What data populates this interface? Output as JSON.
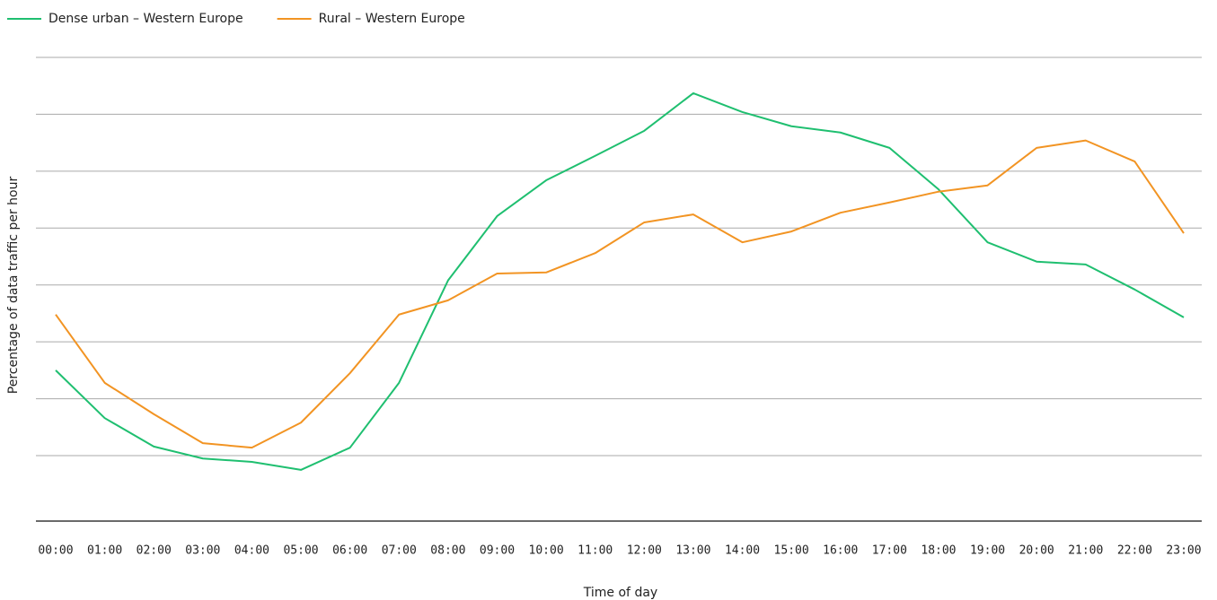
{
  "chart_data": {
    "type": "line",
    "x_label": "Time of day",
    "y_label": "Percentage of data traffic per hour",
    "categories": [
      "00:00",
      "01:00",
      "02:00",
      "03:00",
      "04:00",
      "05:00",
      "06:00",
      "07:00",
      "08:00",
      "09:00",
      "10:00",
      "11:00",
      "12:00",
      "13:00",
      "14:00",
      "15:00",
      "16:00",
      "17:00",
      "18:00",
      "19:00",
      "20:00",
      "21:00",
      "22:00",
      "23:00"
    ],
    "series": [
      {
        "name": "Dense urban – Western Europe",
        "color": "#1fbf70",
        "values": [
          2.5,
          1.66,
          1.16,
          0.95,
          0.89,
          0.75,
          1.14,
          2.28,
          4.08,
          5.21,
          5.84,
          6.27,
          6.71,
          7.37,
          7.04,
          6.79,
          6.68,
          6.41,
          5.68,
          4.75,
          4.41,
          4.36,
          3.92,
          3.43
        ]
      },
      {
        "name": "Rural – Western Europe",
        "color": "#f29423",
        "values": [
          3.48,
          2.28,
          1.73,
          1.22,
          1.14,
          1.58,
          2.45,
          3.48,
          3.73,
          4.2,
          4.22,
          4.56,
          5.1,
          5.24,
          4.75,
          4.94,
          5.27,
          5.45,
          5.64,
          5.75,
          6.41,
          6.54,
          6.17,
          4.91
        ]
      }
    ],
    "ylim": [
      -0.15,
      8
    ],
    "yticks": [
      1,
      2,
      3,
      4,
      5,
      6,
      7,
      8
    ],
    "grid": true,
    "legend": "top-left"
  }
}
